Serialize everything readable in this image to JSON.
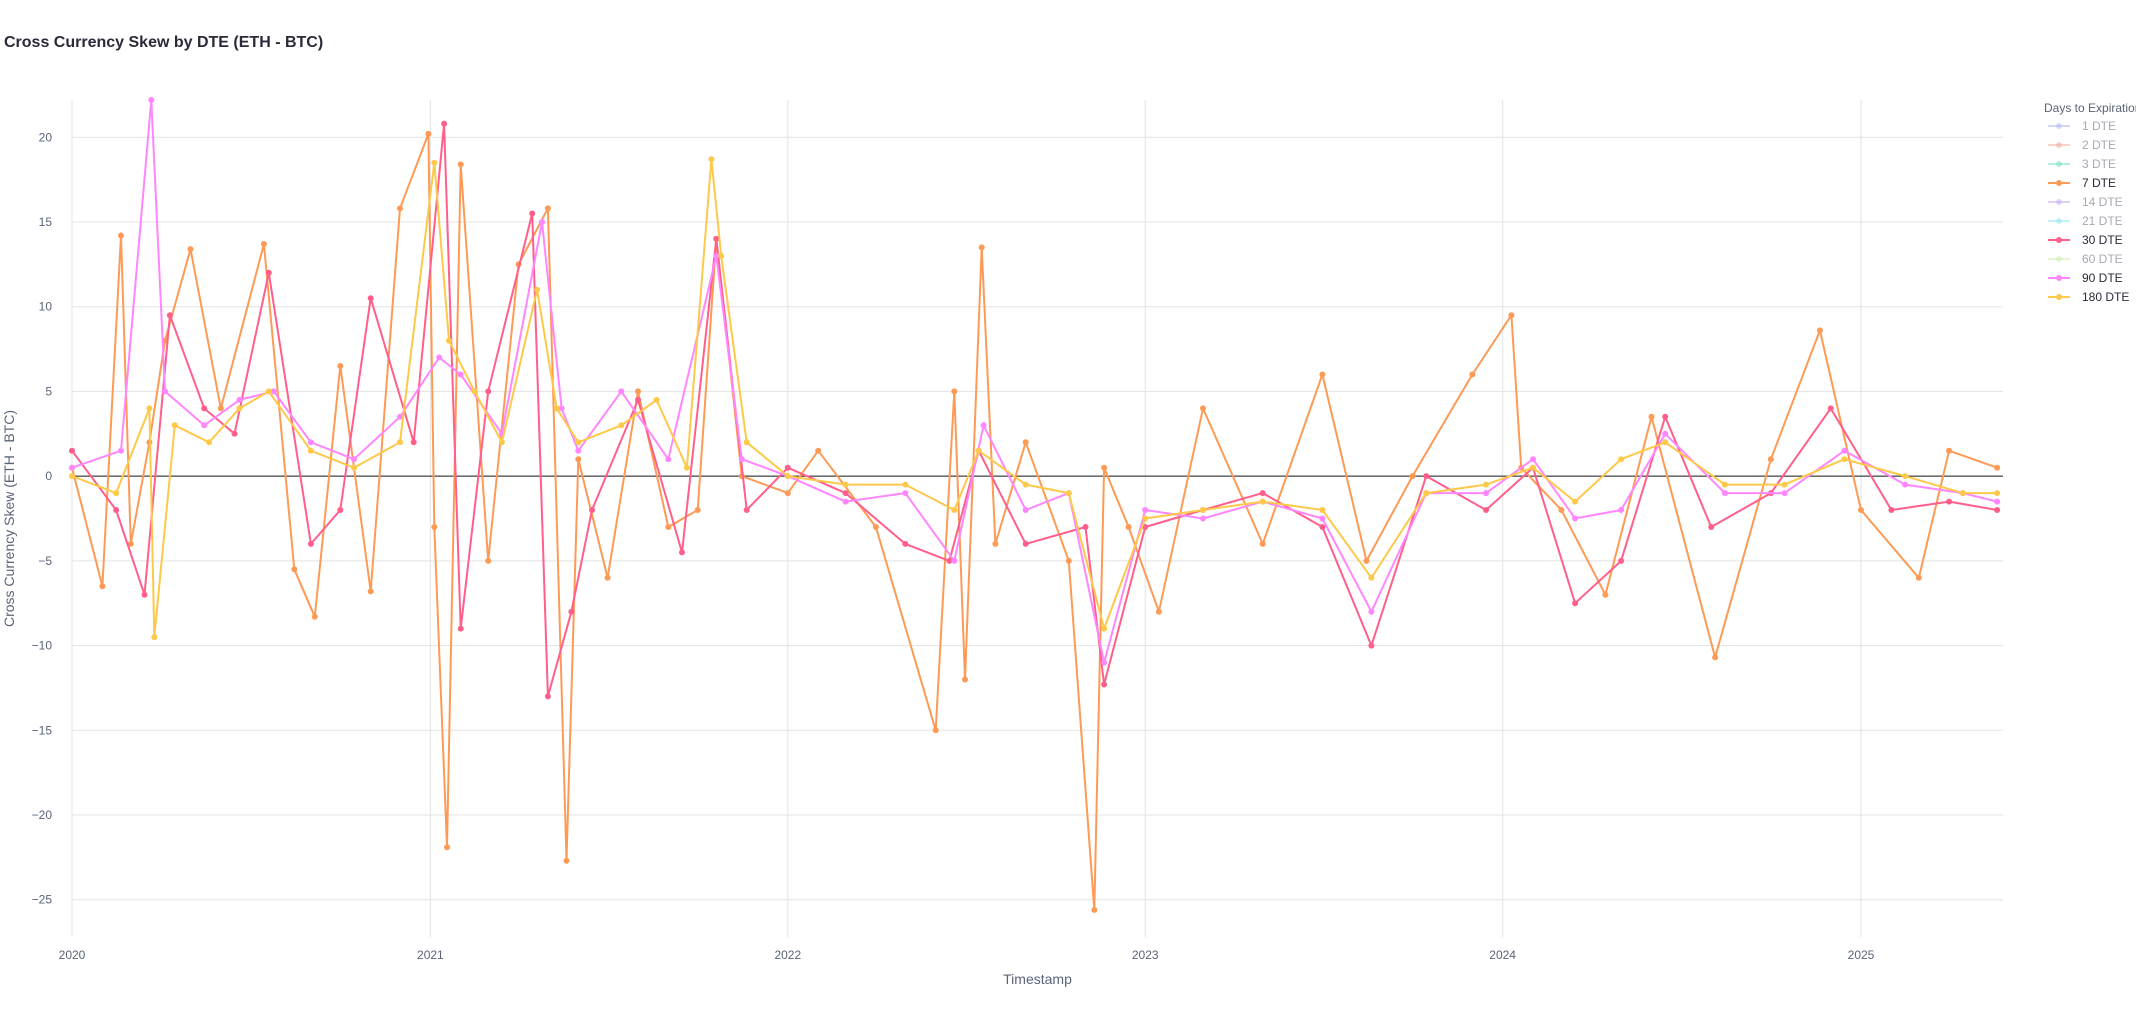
{
  "chart_data": {
    "type": "line",
    "title": "Cross Currency Skew by DTE (ETH - BTC)",
    "xlabel": "Timestamp",
    "ylabel": "Cross Currency Skew (ETH - BTC)",
    "xlim": [
      "2020-01-01",
      "2025-05-26"
    ],
    "ylim": [
      -27.2,
      22.2
    ],
    "x_ticks": [
      "2020",
      "2021",
      "2022",
      "2023",
      "2024",
      "2025"
    ],
    "y_ticks": [
      20,
      15,
      10,
      5,
      0,
      -5,
      -10,
      -15,
      -20,
      -25
    ],
    "zero_line": true,
    "grid": true,
    "legend_title": "Days to Expiration",
    "legend_position": "top-right",
    "series": [
      {
        "name": "1 DTE",
        "color": "#a9b4f2",
        "visible": "legendonly"
      },
      {
        "name": "2 DTE",
        "color": "#f4a79a",
        "visible": "legendonly"
      },
      {
        "name": "3 DTE",
        "color": "#6fe0b4",
        "visible": "legendonly"
      },
      {
        "name": "7 DTE",
        "color": "#fd9a55",
        "visible": true,
        "x": [
          "2020-01-01",
          "2020-02-01",
          "2020-02-20",
          "2020-03-01",
          "2020-03-20",
          "2020-04-05",
          "2020-05-01",
          "2020-06-01",
          "2020-07-15",
          "2020-08-15",
          "2020-09-05",
          "2020-10-01",
          "2020-11-01",
          "2020-12-01",
          "2020-12-30",
          "2021-01-05",
          "2021-01-18",
          "2021-02-01",
          "2021-03-01",
          "2021-04-01",
          "2021-05-01",
          "2021-05-20",
          "2021-06-01",
          "2021-07-01",
          "2021-08-01",
          "2021-09-01",
          "2021-10-01",
          "2021-10-20",
          "2021-11-15",
          "2022-01-01",
          "2022-02-01",
          "2022-04-01",
          "2022-06-01",
          "2022-06-20",
          "2022-07-01",
          "2022-07-18",
          "2022-08-01",
          "2022-09-01",
          "2022-10-15",
          "2022-11-10",
          "2022-11-20",
          "2022-12-15",
          "2023-01-15",
          "2023-03-01",
          "2023-05-01",
          "2023-07-01",
          "2023-08-15",
          "2023-10-01",
          "2023-12-01",
          "2024-01-10",
          "2024-01-20",
          "2024-03-01",
          "2024-04-15",
          "2024-06-01",
          "2024-08-05",
          "2024-10-01",
          "2024-11-20",
          "2025-01-01",
          "2025-03-01",
          "2025-04-01",
          "2025-05-20"
        ],
        "y": [
          0.5,
          -6.5,
          14.2,
          -4.0,
          2.0,
          8.0,
          13.4,
          4.0,
          13.7,
          -5.5,
          -8.3,
          6.5,
          -6.8,
          15.8,
          20.2,
          -3.0,
          -21.9,
          18.4,
          -5.0,
          12.5,
          15.8,
          -22.7,
          1.0,
          -6.0,
          5.0,
          -3.0,
          -2.0,
          14.0,
          0.0,
          -1.0,
          1.5,
          -3.0,
          -15.0,
          5.0,
          -12.0,
          13.5,
          -4.0,
          2.0,
          -5.0,
          -25.6,
          0.5,
          -3.0,
          -8.0,
          4.0,
          -4.0,
          6.0,
          -5.0,
          0.0,
          6.0,
          9.5,
          0.5,
          -2.0,
          -7.0,
          3.5,
          -10.7,
          1.0,
          8.6,
          -2.0,
          -6.0,
          1.5,
          0.5
        ]
      },
      {
        "name": "14 DTE",
        "color": "#c7a6f7",
        "visible": "legendonly"
      },
      {
        "name": "21 DTE",
        "color": "#8de6ef",
        "visible": "legendonly"
      },
      {
        "name": "30 DTE",
        "color": "#ff5f8a",
        "visible": true,
        "x": [
          "2020-01-01",
          "2020-02-15",
          "2020-03-15",
          "2020-04-10",
          "2020-05-15",
          "2020-06-15",
          "2020-07-20",
          "2020-09-01",
          "2020-10-01",
          "2020-11-01",
          "2020-12-15",
          "2021-01-15",
          "2021-02-01",
          "2021-03-01",
          "2021-04-15",
          "2021-05-01",
          "2021-05-25",
          "2021-06-15",
          "2021-08-01",
          "2021-09-15",
          "2021-10-20",
          "2021-11-20",
          "2022-01-01",
          "2022-03-01",
          "2022-05-01",
          "2022-06-15",
          "2022-07-15",
          "2022-09-01",
          "2022-11-01",
          "2022-11-20",
          "2023-01-01",
          "2023-03-01",
          "2023-05-01",
          "2023-07-01",
          "2023-08-20",
          "2023-10-15",
          "2023-12-15",
          "2024-02-01",
          "2024-03-15",
          "2024-05-01",
          "2024-06-15",
          "2024-08-01",
          "2024-10-01",
          "2024-12-01",
          "2025-02-01",
          "2025-04-01",
          "2025-05-20"
        ],
        "y": [
          1.5,
          -2.0,
          -7.0,
          9.5,
          4.0,
          2.5,
          12.0,
          -4.0,
          -2.0,
          10.5,
          2.0,
          20.8,
          -9.0,
          5.0,
          15.5,
          -13.0,
          -8.0,
          -2.0,
          4.5,
          -4.5,
          14.0,
          -2.0,
          0.5,
          -1.0,
          -4.0,
          -5.0,
          1.5,
          -4.0,
          -3.0,
          -12.3,
          -3.0,
          -2.0,
          -1.0,
          -3.0,
          -10.0,
          0.0,
          -2.0,
          0.5,
          -7.5,
          -5.0,
          3.5,
          -3.0,
          -1.0,
          4.0,
          -2.0,
          -1.5,
          -2.0
        ]
      },
      {
        "name": "60 DTE",
        "color": "#c9ecaa",
        "visible": "legendonly"
      },
      {
        "name": "90 DTE",
        "color": "#ff86ff",
        "visible": true,
        "x": [
          "2020-01-01",
          "2020-02-20",
          "2020-03-22",
          "2020-04-05",
          "2020-05-15",
          "2020-06-20",
          "2020-07-25",
          "2020-09-01",
          "2020-10-15",
          "2020-12-01",
          "2021-01-10",
          "2021-02-01",
          "2021-03-15",
          "2021-04-25",
          "2021-05-15",
          "2021-06-01",
          "2021-07-15",
          "2021-09-01",
          "2021-10-20",
          "2021-11-15",
          "2022-01-01",
          "2022-03-01",
          "2022-05-01",
          "2022-06-20",
          "2022-07-20",
          "2022-09-01",
          "2022-10-15",
          "2022-11-20",
          "2023-01-01",
          "2023-03-01",
          "2023-05-01",
          "2023-07-01",
          "2023-08-20",
          "2023-10-15",
          "2023-12-15",
          "2024-02-01",
          "2024-03-15",
          "2024-05-01",
          "2024-06-15",
          "2024-08-15",
          "2024-10-15",
          "2024-12-15",
          "2025-02-15",
          "2025-04-15",
          "2025-05-20"
        ],
        "y": [
          0.5,
          1.5,
          22.2,
          5.0,
          3.0,
          4.5,
          5.0,
          2.0,
          1.0,
          3.5,
          7.0,
          6.0,
          2.5,
          15.0,
          4.0,
          1.5,
          5.0,
          1.0,
          13.0,
          1.0,
          0.0,
          -1.5,
          -1.0,
          -5.0,
          3.0,
          -2.0,
          -1.0,
          -11.0,
          -2.0,
          -2.5,
          -1.5,
          -2.5,
          -8.0,
          -1.0,
          -1.0,
          1.0,
          -2.5,
          -2.0,
          2.5,
          -1.0,
          -1.0,
          1.5,
          -0.5,
          -1.0,
          -1.5
        ]
      },
      {
        "name": "180 DTE",
        "color": "#fdc94a",
        "visible": true,
        "x": [
          "2020-01-01",
          "2020-02-15",
          "2020-03-20",
          "2020-03-25",
          "2020-04-15",
          "2020-05-20",
          "2020-06-20",
          "2020-07-20",
          "2020-09-01",
          "2020-10-15",
          "2020-12-01",
          "2021-01-05",
          "2021-01-20",
          "2021-02-15",
          "2021-03-15",
          "2021-04-20",
          "2021-05-10",
          "2021-06-01",
          "2021-07-15",
          "2021-08-20",
          "2021-09-20",
          "2021-10-15",
          "2021-10-25",
          "2021-11-20",
          "2022-01-01",
          "2022-03-01",
          "2022-05-01",
          "2022-06-20",
          "2022-07-15",
          "2022-09-01",
          "2022-10-15",
          "2022-11-20",
          "2023-01-01",
          "2023-03-01",
          "2023-05-01",
          "2023-07-01",
          "2023-08-20",
          "2023-10-15",
          "2023-12-15",
          "2024-02-01",
          "2024-03-15",
          "2024-05-01",
          "2024-06-15",
          "2024-08-15",
          "2024-10-15",
          "2024-12-15",
          "2025-02-15",
          "2025-04-15",
          "2025-05-20"
        ],
        "y": [
          0.0,
          -1.0,
          4.0,
          -9.5,
          3.0,
          2.0,
          4.0,
          5.0,
          1.5,
          0.5,
          2.0,
          18.5,
          8.0,
          5.0,
          2.0,
          11.0,
          4.0,
          2.0,
          3.0,
          4.5,
          0.5,
          18.7,
          13.0,
          2.0,
          0.0,
          -0.5,
          -0.5,
          -2.0,
          1.5,
          -0.5,
          -1.0,
          -9.0,
          -2.5,
          -2.0,
          -1.5,
          -2.0,
          -6.0,
          -1.0,
          -0.5,
          0.5,
          -1.5,
          1.0,
          2.0,
          -0.5,
          -0.5,
          1.0,
          0.0,
          -1.0,
          -1.0
        ]
      }
    ]
  }
}
